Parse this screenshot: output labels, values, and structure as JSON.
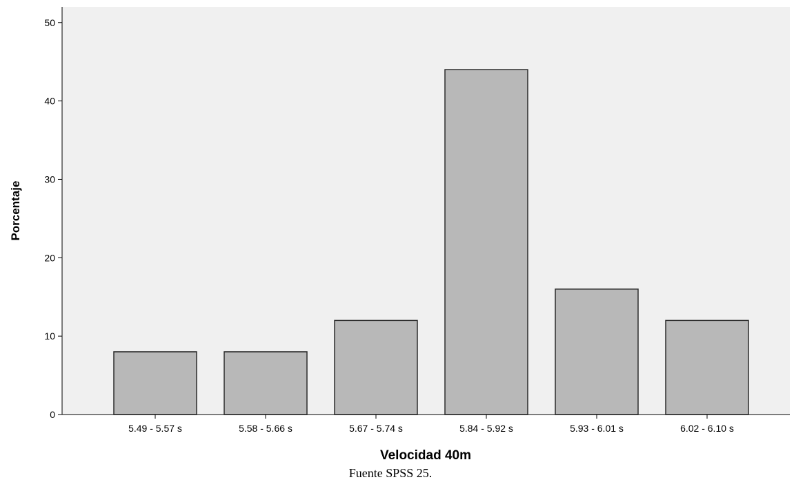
{
  "chart_data": {
    "type": "bar",
    "categories": [
      "5.49 - 5.57 s",
      "5.58 - 5.66 s",
      "5.67 - 5.74 s",
      "5.84 - 5.92 s",
      "5.93 - 6.01 s",
      "6.02 - 6.10 s"
    ],
    "values": [
      8,
      8,
      12,
      44,
      16,
      12
    ],
    "xlabel": "Velocidad 40m",
    "ylabel": "Porcentaje",
    "ylim": [
      0,
      52
    ],
    "yticks": [
      0,
      10,
      20,
      30,
      40,
      50
    ],
    "grid": false,
    "colors": {
      "plot_background": "#f0f0f0",
      "bar_fill": "#b8b8b8",
      "bar_stroke": "#2a2a2a"
    }
  },
  "caption": "Fuente SPSS 25."
}
